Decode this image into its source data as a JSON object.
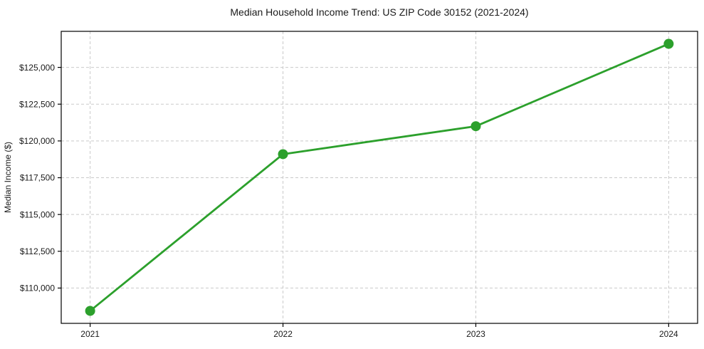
{
  "chart_data": {
    "type": "line",
    "title": "Median Household Income Trend: US ZIP Code 30152 (2021-2024)",
    "xlabel": "",
    "ylabel": "Median Income ($)",
    "categories": [
      "2021",
      "2022",
      "2023",
      "2024"
    ],
    "series": [
      {
        "name": "Median Household Income",
        "values": [
          108450,
          119100,
          121000,
          126600
        ]
      }
    ],
    "yticks": [
      {
        "value": 110000,
        "label": "$110,000"
      },
      {
        "value": 112500,
        "label": "$112,500"
      },
      {
        "value": 115000,
        "label": "$115,000"
      },
      {
        "value": 117500,
        "label": "$117,500"
      },
      {
        "value": 120000,
        "label": "$120,000"
      },
      {
        "value": 122500,
        "label": "$122,500"
      },
      {
        "value": 125000,
        "label": "$125,000"
      }
    ],
    "ylim": [
      107600,
      127450
    ],
    "xlim": [
      -0.15,
      3.15
    ],
    "grid": true,
    "grid_style": "dashed",
    "legend": false,
    "colors": {
      "line": "#2ca02c",
      "marker": "#2ca02c",
      "grid": "#c9c9c9",
      "spine": "#000000",
      "text": "#1a1a1a",
      "background": "#ffffff"
    }
  }
}
